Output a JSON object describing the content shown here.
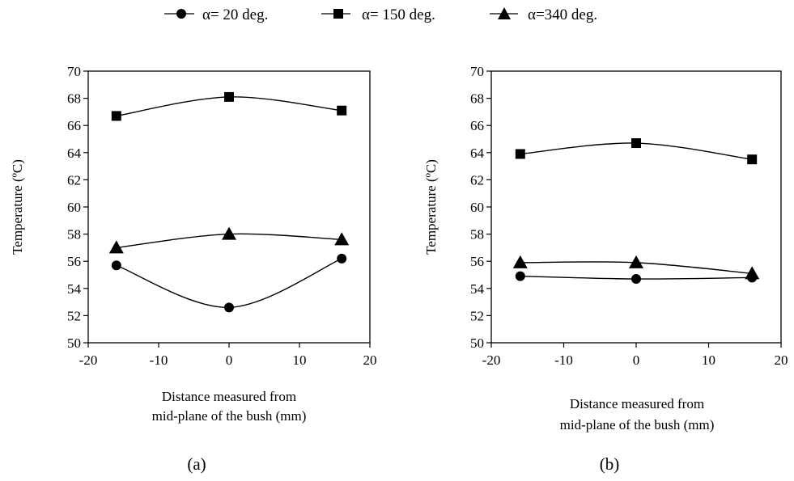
{
  "legend": [
    {
      "label": "α= 20 deg.",
      "marker": "circle"
    },
    {
      "label": "α= 150 deg.",
      "marker": "square"
    },
    {
      "label": "α=340 deg.",
      "marker": "triangle"
    }
  ],
  "chart_data": [
    {
      "type": "line",
      "panel_label": "(a)",
      "title": "",
      "xlabel": [
        "Distance measured from",
        "mid-plane of the bush (mm)"
      ],
      "ylabel": "Temperature (ºC)",
      "xlim": [
        -20,
        20
      ],
      "ylim": [
        50,
        70
      ],
      "xticks": [
        -20,
        -10,
        0,
        10,
        20
      ],
      "yticks": [
        50,
        52,
        54,
        56,
        58,
        60,
        62,
        64,
        66,
        68,
        70
      ],
      "x": [
        -16,
        0,
        16
      ],
      "series": [
        {
          "name": "α= 20 deg.",
          "marker": "circle",
          "values": [
            55.7,
            52.6,
            56.2
          ]
        },
        {
          "name": "α= 150 deg.",
          "marker": "square",
          "values": [
            66.7,
            68.1,
            67.1
          ]
        },
        {
          "name": "α=340 deg.",
          "marker": "triangle",
          "values": [
            57.0,
            58.0,
            57.6
          ]
        }
      ]
    },
    {
      "type": "line",
      "panel_label": "(b)",
      "title": "",
      "xlabel": [
        "Distance measured from",
        "mid-plane of the bush (mm)"
      ],
      "ylabel": "Temperature (ºC)",
      "xlim": [
        -20,
        20
      ],
      "ylim": [
        50,
        70
      ],
      "xticks": [
        -20,
        -10,
        0,
        10,
        20
      ],
      "yticks": [
        50,
        52,
        54,
        56,
        58,
        60,
        62,
        64,
        66,
        68,
        70
      ],
      "x": [
        -16,
        0,
        16
      ],
      "series": [
        {
          "name": "α= 20 deg.",
          "marker": "circle",
          "values": [
            54.9,
            54.7,
            54.8
          ]
        },
        {
          "name": "α= 150 deg.",
          "marker": "square",
          "values": [
            63.9,
            64.7,
            63.5
          ]
        },
        {
          "name": "α=340 deg.",
          "marker": "triangle",
          "values": [
            55.9,
            55.9,
            55.1
          ]
        }
      ]
    }
  ]
}
